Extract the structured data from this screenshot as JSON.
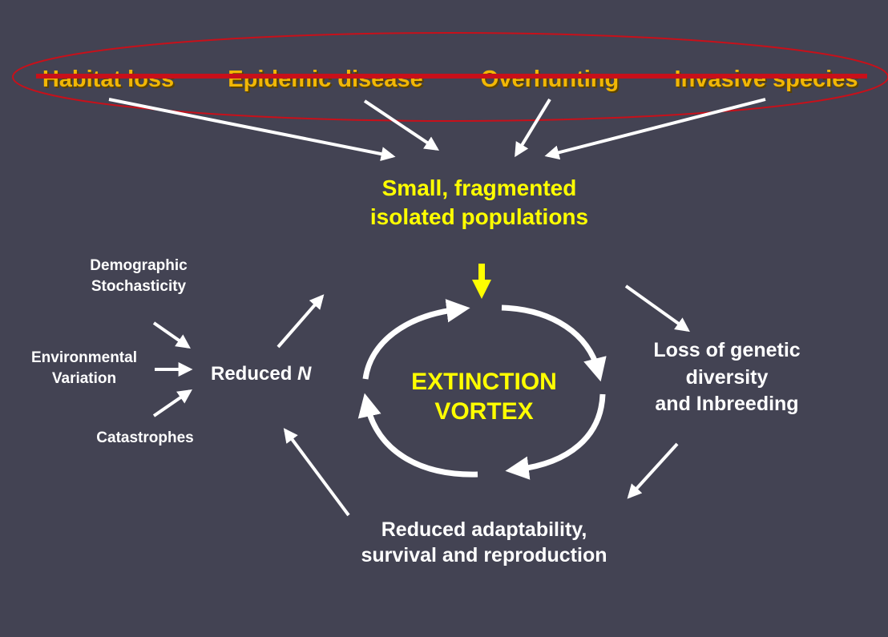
{
  "threats": {
    "habitat_loss": "Habitat loss",
    "epidemic_disease": "Epidemic disease",
    "overhunting": "Overhunting",
    "invasive_species": "Invasive species"
  },
  "small_populations": {
    "line1": "Small, fragmented",
    "line2": "isolated populations"
  },
  "drivers": {
    "demographic_line1": "Demographic",
    "demographic_line2": "Stochasticity",
    "environmental_line1": "Environmental",
    "environmental_line2": "Variation",
    "catastrophes": "Catastrophes"
  },
  "reduced_n": {
    "prefix": "Reduced ",
    "symbol": "N"
  },
  "vortex": {
    "line1": "EXTINCTION",
    "line2": "VORTEX"
  },
  "genetic": {
    "line1": "Loss of genetic",
    "line2": "diversity",
    "line3": "and Inbreeding"
  },
  "adaptability": {
    "line1": "Reduced adaptability,",
    "line2": "survival and reproduction"
  },
  "colors": {
    "background": "#434353",
    "threat_text": "#f2b705",
    "highlight": "#ffff00",
    "strike_line": "#c8101a",
    "arrow": "#ffffff"
  }
}
